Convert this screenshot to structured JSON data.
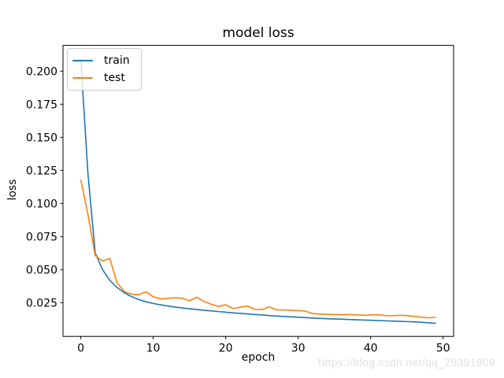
{
  "watermark": {
    "text": "https://blog.csdn.net/qq_29391809",
    "color": "#e0e0e0"
  },
  "chart_data": {
    "type": "line",
    "title": "model loss",
    "xlabel": "epoch",
    "ylabel": "loss",
    "grid": false,
    "legend_position": "upper-left",
    "xlim": [
      -2.45,
      51.45
    ],
    "ylim": [
      -0.0005,
      0.2195
    ],
    "xticks": [
      0,
      10,
      20,
      30,
      40,
      50
    ],
    "yticks": [
      0.025,
      0.05,
      0.075,
      0.1,
      0.125,
      0.15,
      0.175,
      0.2
    ],
    "x": [
      0,
      1,
      2,
      3,
      4,
      5,
      6,
      7,
      8,
      9,
      10,
      11,
      12,
      13,
      14,
      15,
      16,
      17,
      18,
      19,
      20,
      21,
      22,
      23,
      24,
      25,
      26,
      27,
      28,
      29,
      30,
      31,
      32,
      33,
      34,
      35,
      36,
      37,
      38,
      39,
      40,
      41,
      42,
      43,
      44,
      45,
      46,
      47,
      48,
      49
    ],
    "series": [
      {
        "name": "train",
        "color": "#1f77b4",
        "values": [
          0.2095,
          0.122,
          0.0625,
          0.05,
          0.042,
          0.0365,
          0.0325,
          0.0296,
          0.0274,
          0.0257,
          0.0244,
          0.0234,
          0.0225,
          0.0217,
          0.021,
          0.0204,
          0.0198,
          0.0193,
          0.0188,
          0.0183,
          0.0178,
          0.0173,
          0.0169,
          0.0165,
          0.0161,
          0.0157,
          0.0153,
          0.0149,
          0.0146,
          0.0143,
          0.014,
          0.0137,
          0.0134,
          0.0131,
          0.0129,
          0.0127,
          0.0125,
          0.0123,
          0.0121,
          0.0119,
          0.0117,
          0.0115,
          0.0113,
          0.0111,
          0.0109,
          0.0107,
          0.0105,
          0.0102,
          0.0098,
          0.0094
        ]
      },
      {
        "name": "test",
        "color": "#ff7f0e",
        "values": [
          0.118,
          0.0915,
          0.0605,
          0.0565,
          0.0585,
          0.04,
          0.0335,
          0.0315,
          0.031,
          0.0332,
          0.0295,
          0.0278,
          0.0282,
          0.0287,
          0.0284,
          0.0264,
          0.0292,
          0.026,
          0.0238,
          0.0222,
          0.0234,
          0.0206,
          0.0216,
          0.0224,
          0.02,
          0.0198,
          0.0218,
          0.0196,
          0.0195,
          0.0192,
          0.019,
          0.0186,
          0.0168,
          0.0164,
          0.0162,
          0.016,
          0.0159,
          0.016,
          0.0157,
          0.0155,
          0.0157,
          0.0159,
          0.0153,
          0.0151,
          0.0155,
          0.0152,
          0.0147,
          0.014,
          0.0136,
          0.0139
        ]
      }
    ]
  }
}
